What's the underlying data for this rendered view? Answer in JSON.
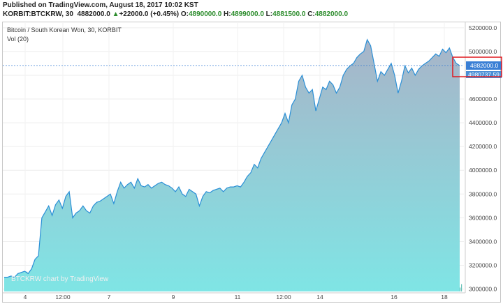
{
  "header": {
    "published": "Published on TradingView.com, August 18, 2017 10:02 KST",
    "symbol": "KORBIT:BTCKRW, 30",
    "last": "4882000.0",
    "change_arrow": "▲",
    "change": "+22000.0 (+0.45%)",
    "o_label": "O:",
    "o_value": "4890000.0",
    "h_label": "H:",
    "h_value": "4899000.0",
    "l_label": "L:",
    "l_value": "4881500.0",
    "c_label": "C:",
    "c_value": "4882000.0"
  },
  "legend": {
    "title": "Bitcoin / South Korean Won, 30, KORBIT",
    "volume": "Vol (20)"
  },
  "watermark": "BTCKRW chart by TradingView",
  "price_tag": {
    "current": "4882000.0",
    "volume_label": "4980737.59"
  },
  "colors": {
    "line": "#2a8fd6",
    "area_top": "#a8b4c8",
    "area_bottom": "#7fe5e5",
    "volume_bar": "#26a69a",
    "price_line": "#3a7fd5",
    "highlight_box": "#e0181f"
  },
  "chart_data": {
    "type": "area",
    "title": "Bitcoin / South Korean Won, 30, KORBIT",
    "ylabel": "",
    "xlabel": "",
    "ylim": [
      2980000,
      5240000
    ],
    "y_ticks": [
      "5200000.0",
      "5000000.0",
      "4800000.0",
      "4600000.0",
      "4400000.0",
      "4200000.0",
      "4000000.0",
      "3800000.0",
      "3600000.0",
      "3400000.0",
      "3200000.0",
      "3000000.0"
    ],
    "x_ticks": [
      "4",
      "12:00",
      "7",
      "9",
      "11",
      "12:00",
      "14",
      "16",
      "18"
    ],
    "series": [
      {
        "values": [
          3100000,
          3100000,
          3110000,
          3100000,
          3130000,
          3140000,
          3150000,
          3130000,
          3170000,
          3250000,
          3280000,
          3600000,
          3650000,
          3700000,
          3620000,
          3710000,
          3750000,
          3680000,
          3780000,
          3820000,
          3600000,
          3640000,
          3660000,
          3700000,
          3660000,
          3640000,
          3700000,
          3730000,
          3740000,
          3760000,
          3780000,
          3800000,
          3720000,
          3820000,
          3900000,
          3850000,
          3880000,
          3900000,
          3850000,
          3930000,
          3870000,
          3860000,
          3880000,
          3850000,
          3870000,
          3890000,
          3900000,
          3880000,
          3870000,
          3850000,
          3820000,
          3860000,
          3800000,
          3780000,
          3840000,
          3820000,
          3800000,
          3700000,
          3780000,
          3820000,
          3810000,
          3830000,
          3840000,
          3850000,
          3820000,
          3850000,
          3860000,
          3860000,
          3870000,
          3860000,
          3900000,
          3950000,
          3980000,
          4050000,
          4020000,
          4100000,
          4150000,
          4200000,
          4250000,
          4300000,
          4350000,
          4400000,
          4480000,
          4400000,
          4550000,
          4600000,
          4750000,
          4800000,
          4700000,
          4650000,
          4680000,
          4500000,
          4600000,
          4700000,
          4680000,
          4750000,
          4720000,
          4650000,
          4700000,
          4800000,
          4850000,
          4880000,
          4900000,
          4950000,
          4980000,
          5000000,
          5100000,
          5050000,
          4900000,
          4750000,
          4830000,
          4800000,
          4850000,
          4900000,
          4800000,
          4650000,
          4750000,
          4880000,
          4820000,
          4860000,
          4800000,
          4850000,
          4880000,
          4900000,
          4920000,
          4950000,
          4980000,
          4960000,
          5020000,
          4990000,
          5030000,
          4950000,
          4900000,
          4882000
        ]
      }
    ]
  }
}
